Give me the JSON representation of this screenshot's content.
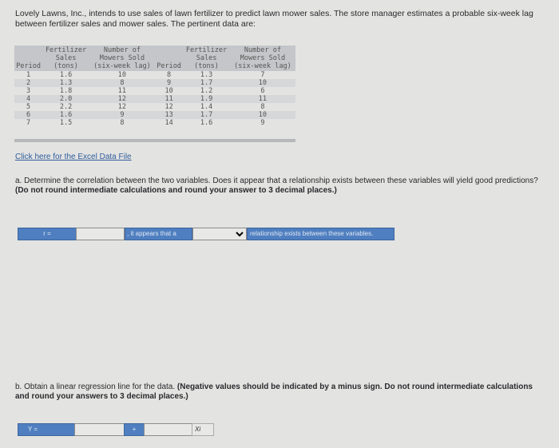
{
  "intro": "Lovely Lawns, Inc., intends to use sales of lawn fertilizer to predict lawn mower sales. The store manager estimates a probable six-week lag between fertilizer sales and mower sales. The pertinent data are:",
  "table": {
    "headers": [
      "Period",
      "Fertilizer\nSales\n(tons)",
      "Number of\nMowers Sold\n(six-week lag)",
      "Period",
      "Fertilizer\nSales\n(tons)",
      "Number of\nMowers Sold\n(six-week lag)"
    ],
    "rows": [
      [
        "1",
        "1.6",
        "10",
        "8",
        "1.3",
        "7"
      ],
      [
        "2",
        "1.3",
        "8",
        "9",
        "1.7",
        "10"
      ],
      [
        "3",
        "1.8",
        "11",
        "10",
        "1.2",
        "6"
      ],
      [
        "4",
        "2.0",
        "12",
        "11",
        "1.9",
        "11"
      ],
      [
        "5",
        "2.2",
        "12",
        "12",
        "1.4",
        "8"
      ],
      [
        "6",
        "1.6",
        "9",
        "13",
        "1.7",
        "10"
      ],
      [
        "7",
        "1.5",
        "8",
        "14",
        "1.6",
        "9"
      ]
    ]
  },
  "link": "Click here for the Excel Data File",
  "part_a": {
    "text": "a. Determine the correlation between the two variables. Does it appear that a relationship exists between these variables will yield good predictions?",
    "bold": "(Do not round intermediate calculations and round your answer to 3 decimal places.)",
    "r_label": "r =",
    "r_value": "",
    "mid_label": ", it appears that a",
    "relationship_value": "",
    "end_label": "relationship exists between these variables."
  },
  "part_b": {
    "text": "b. Obtain a linear regression line for the data.",
    "bold": "(Negative values should be indicated by a minus sign. Do not round intermediate calculations and round your answers to 3 decimal places.)",
    "y_label": "Y =",
    "intercept_value": "",
    "plus_label": "+",
    "slope_value": "",
    "x_label": "Xi"
  }
}
